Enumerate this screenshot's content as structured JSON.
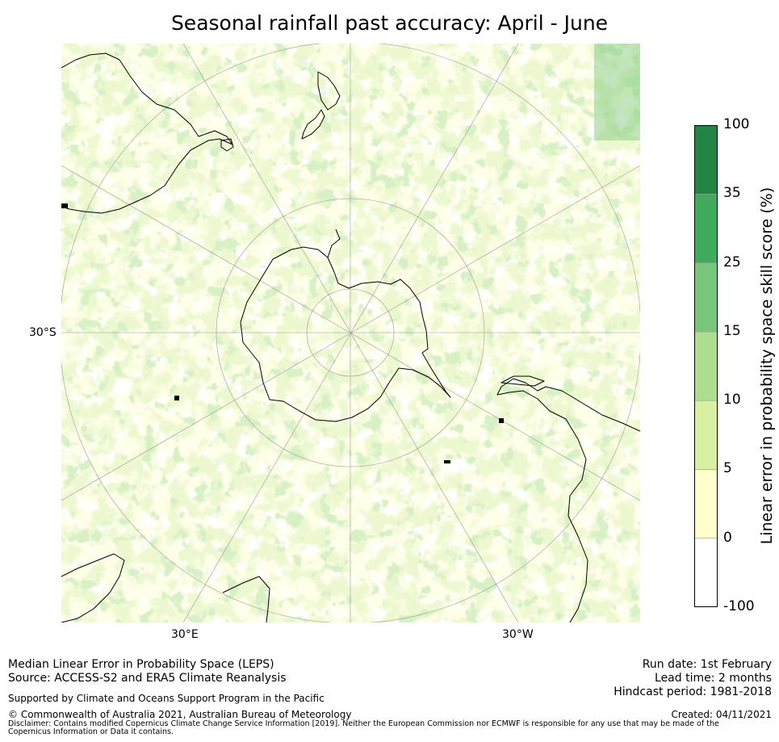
{
  "title": "Seasonal rainfall past accuracy: April - June",
  "map": {
    "latitude_label": "30°S",
    "longitude_labels": {
      "east": "30°E",
      "west": "30°W"
    }
  },
  "colorbar": {
    "title": "Linear error in probability space skill score (%)",
    "ticks": [
      "100",
      "35",
      "25",
      "15",
      "10",
      "5",
      "0",
      "-100"
    ],
    "bins": [
      {
        "from": "-100",
        "to": "0",
        "color": "#ffffff"
      },
      {
        "from": "0",
        "to": "5",
        "color": "#ffffcc"
      },
      {
        "from": "5",
        "to": "10",
        "color": "#d9f0a3"
      },
      {
        "from": "10",
        "to": "15",
        "color": "#addd8e"
      },
      {
        "from": "15",
        "to": "25",
        "color": "#78c679"
      },
      {
        "from": "25",
        "to": "35",
        "color": "#41ab5d"
      },
      {
        "from": "35",
        "to": "100",
        "color": "#238443"
      }
    ]
  },
  "footer": {
    "line1": "Median Linear Error in Probability Space (LEPS)",
    "line2": "Source: ACCESS-S2 and ERA5 Climate Reanalysis",
    "support": "Supported by Climate and Oceans Support Program in the Pacific",
    "copyright": "© Commonwealth of Australia 2021, Australian Bureau of Meteorology",
    "disclaimer": "Disclaimer: Contains modified Copernicus Climate Change Service Information [2019]. Neither the European Commission nor ECMWF is responsible for any use that may be made of the Copernicus Information or Data it contains.",
    "run_date": "Run date: 1st February",
    "lead_time": "Lead time: 2 months",
    "hindcast": "Hindcast period: 1981-2018",
    "created": "Created: 04/11/2021"
  }
}
